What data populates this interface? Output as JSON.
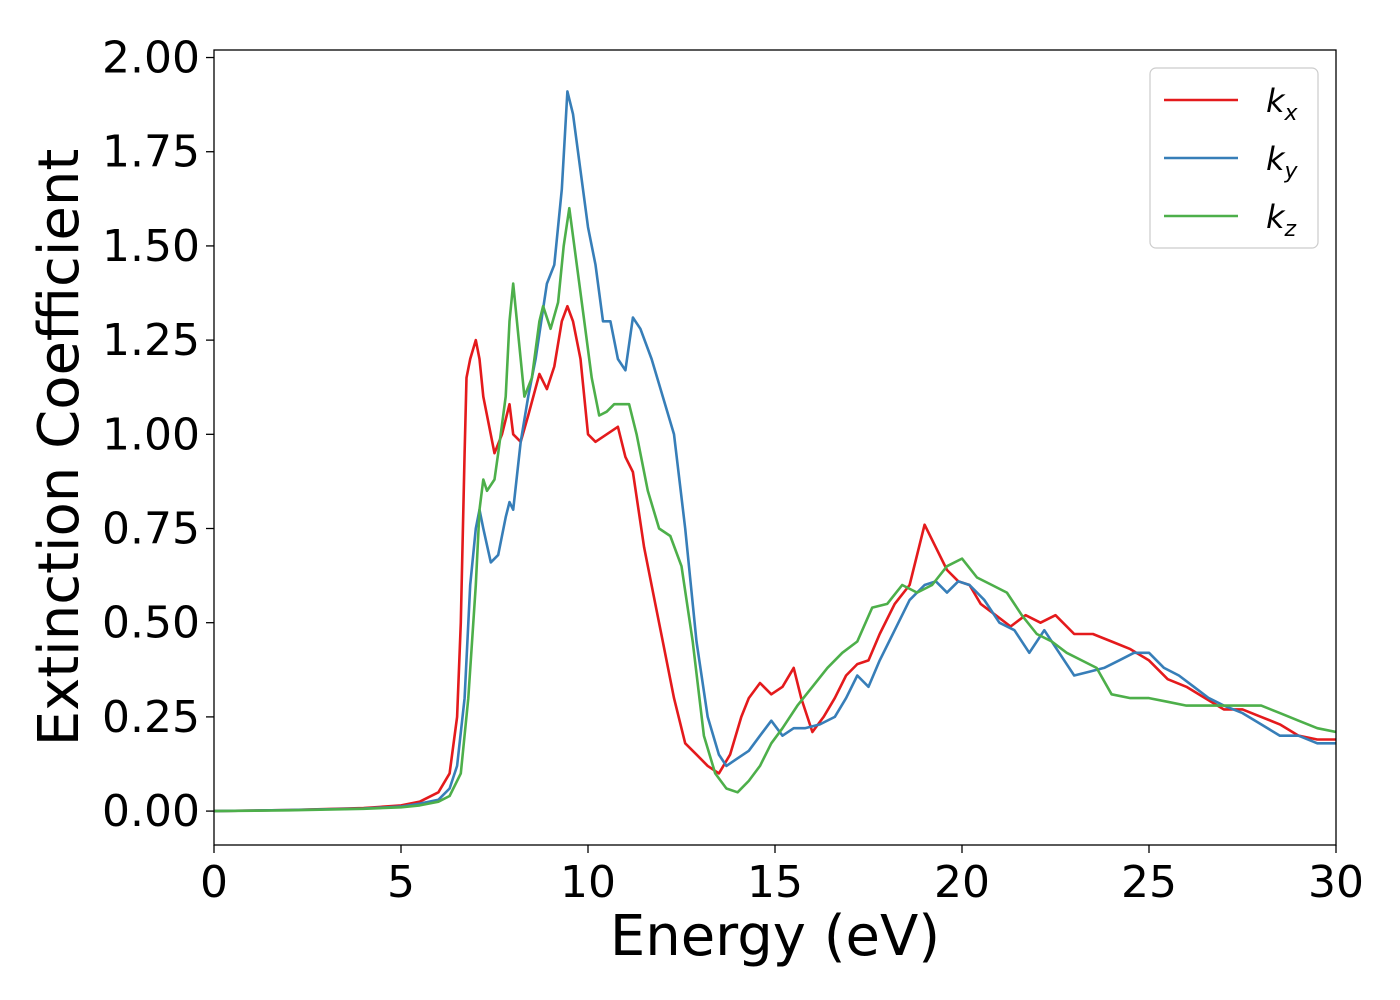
{
  "chart_data": {
    "type": "line",
    "title": "",
    "xlabel": "Energy (eV)",
    "ylabel": "Extinction Coefficient",
    "xlim": [
      0,
      30
    ],
    "ylim": [
      -0.09,
      2.02
    ],
    "x_ticks": [
      0,
      5,
      10,
      15,
      20,
      25,
      30
    ],
    "x_tick_labels": [
      "0",
      "5",
      "10",
      "15",
      "20",
      "25",
      "30"
    ],
    "y_ticks": [
      0,
      0.25,
      0.5,
      0.75,
      1.0,
      1.25,
      1.5,
      1.75,
      2.0
    ],
    "y_tick_labels": [
      "0.00",
      "0.25",
      "0.50",
      "0.75",
      "1.00",
      "1.25",
      "1.50",
      "1.75",
      "2.00"
    ],
    "grid": false,
    "legend": {
      "position": "top-right"
    },
    "series": [
      {
        "name": "k",
        "subscript": "x",
        "color": "#e41a1c",
        "x": [
          0,
          2,
          4,
          5,
          5.5,
          6,
          6.3,
          6.5,
          6.6,
          6.7,
          6.75,
          6.85,
          7.0,
          7.1,
          7.2,
          7.5,
          7.7,
          7.9,
          8.0,
          8.2,
          8.4,
          8.7,
          8.9,
          9.1,
          9.3,
          9.45,
          9.6,
          9.8,
          10.0,
          10.2,
          10.5,
          10.8,
          11.0,
          11.2,
          11.5,
          11.8,
          12.0,
          12.3,
          12.6,
          12.9,
          13.2,
          13.5,
          13.8,
          14.1,
          14.3,
          14.6,
          14.9,
          15.2,
          15.5,
          15.7,
          16.0,
          16.3,
          16.6,
          16.9,
          17.2,
          17.5,
          17.8,
          18.2,
          18.6,
          19.0,
          19.3,
          19.6,
          19.9,
          20.2,
          20.5,
          20.9,
          21.3,
          21.7,
          22.1,
          22.5,
          23.0,
          23.5,
          24.0,
          24.5,
          25.0,
          25.5,
          26.0,
          26.5,
          27.0,
          27.5,
          28.0,
          28.5,
          29.0,
          29.5,
          30.0
        ],
        "y": [
          0,
          0.003,
          0.008,
          0.015,
          0.025,
          0.05,
          0.1,
          0.25,
          0.5,
          0.95,
          1.15,
          1.2,
          1.25,
          1.2,
          1.1,
          0.95,
          1.0,
          1.08,
          1.0,
          0.98,
          1.05,
          1.16,
          1.12,
          1.18,
          1.3,
          1.34,
          1.3,
          1.2,
          1.0,
          0.98,
          1.0,
          1.02,
          0.94,
          0.9,
          0.7,
          0.55,
          0.45,
          0.3,
          0.18,
          0.15,
          0.12,
          0.1,
          0.15,
          0.25,
          0.3,
          0.34,
          0.31,
          0.33,
          0.38,
          0.3,
          0.21,
          0.25,
          0.3,
          0.36,
          0.39,
          0.4,
          0.47,
          0.55,
          0.6,
          0.76,
          0.7,
          0.64,
          0.61,
          0.6,
          0.55,
          0.52,
          0.49,
          0.52,
          0.5,
          0.52,
          0.47,
          0.47,
          0.45,
          0.43,
          0.4,
          0.35,
          0.33,
          0.3,
          0.27,
          0.27,
          0.25,
          0.23,
          0.2,
          0.19,
          0.19
        ]
      },
      {
        "name": "k",
        "subscript": "y",
        "color": "#377eb8",
        "x": [
          0,
          2,
          4,
          5,
          5.5,
          6,
          6.3,
          6.5,
          6.7,
          6.85,
          7.0,
          7.1,
          7.2,
          7.4,
          7.6,
          7.8,
          7.9,
          8.0,
          8.2,
          8.4,
          8.6,
          8.9,
          9.1,
          9.3,
          9.45,
          9.6,
          9.8,
          10.0,
          10.2,
          10.4,
          10.6,
          10.8,
          11.0,
          11.2,
          11.4,
          11.7,
          12.0,
          12.3,
          12.6,
          12.9,
          13.2,
          13.5,
          13.7,
          14.0,
          14.3,
          14.6,
          14.9,
          15.2,
          15.5,
          15.8,
          16.2,
          16.6,
          16.9,
          17.2,
          17.5,
          17.8,
          18.2,
          18.6,
          19.0,
          19.3,
          19.6,
          19.9,
          20.2,
          20.6,
          21.0,
          21.4,
          21.8,
          22.2,
          22.6,
          23.0,
          23.4,
          23.8,
          24.2,
          24.6,
          25.0,
          25.4,
          25.8,
          26.2,
          26.6,
          27.0,
          27.5,
          28.0,
          28.5,
          29.0,
          29.5,
          30.0
        ],
        "y": [
          0,
          0.003,
          0.007,
          0.012,
          0.02,
          0.03,
          0.06,
          0.12,
          0.3,
          0.6,
          0.75,
          0.8,
          0.75,
          0.66,
          0.68,
          0.78,
          0.82,
          0.8,
          0.98,
          1.1,
          1.2,
          1.4,
          1.45,
          1.65,
          1.91,
          1.85,
          1.7,
          1.55,
          1.45,
          1.3,
          1.3,
          1.2,
          1.17,
          1.31,
          1.28,
          1.2,
          1.1,
          1.0,
          0.75,
          0.45,
          0.25,
          0.15,
          0.12,
          0.14,
          0.16,
          0.2,
          0.24,
          0.2,
          0.22,
          0.22,
          0.23,
          0.25,
          0.3,
          0.36,
          0.33,
          0.4,
          0.48,
          0.56,
          0.6,
          0.61,
          0.58,
          0.61,
          0.6,
          0.56,
          0.5,
          0.48,
          0.42,
          0.48,
          0.42,
          0.36,
          0.37,
          0.38,
          0.4,
          0.42,
          0.42,
          0.38,
          0.36,
          0.33,
          0.3,
          0.28,
          0.26,
          0.23,
          0.2,
          0.2,
          0.18,
          0.18
        ]
      },
      {
        "name": "k",
        "subscript": "z",
        "color": "#4daf4a",
        "x": [
          0,
          2,
          4,
          5,
          5.5,
          6,
          6.3,
          6.6,
          6.8,
          7.0,
          7.1,
          7.2,
          7.3,
          7.5,
          7.6,
          7.8,
          7.9,
          8.0,
          8.15,
          8.3,
          8.5,
          8.7,
          8.8,
          9.0,
          9.2,
          9.35,
          9.5,
          9.7,
          9.9,
          10.1,
          10.3,
          10.5,
          10.7,
          10.9,
          11.1,
          11.3,
          11.6,
          11.9,
          12.2,
          12.5,
          12.8,
          13.1,
          13.4,
          13.7,
          14.0,
          14.3,
          14.6,
          14.9,
          15.2,
          15.6,
          16.0,
          16.4,
          16.8,
          17.2,
          17.6,
          18.0,
          18.4,
          18.8,
          19.2,
          19.6,
          20.0,
          20.4,
          20.8,
          21.2,
          21.6,
          22.0,
          22.4,
          22.8,
          23.2,
          23.6,
          24.0,
          24.5,
          25.0,
          25.5,
          26.0,
          26.5,
          27.0,
          27.5,
          28.0,
          28.5,
          29.0,
          29.5,
          30.0
        ],
        "y": [
          0,
          0.002,
          0.006,
          0.01,
          0.015,
          0.025,
          0.04,
          0.1,
          0.3,
          0.6,
          0.8,
          0.88,
          0.85,
          0.88,
          0.95,
          1.1,
          1.3,
          1.4,
          1.25,
          1.1,
          1.15,
          1.3,
          1.34,
          1.28,
          1.35,
          1.5,
          1.6,
          1.45,
          1.3,
          1.15,
          1.05,
          1.06,
          1.08,
          1.08,
          1.08,
          1.0,
          0.85,
          0.75,
          0.73,
          0.65,
          0.45,
          0.2,
          0.1,
          0.06,
          0.05,
          0.08,
          0.12,
          0.18,
          0.22,
          0.28,
          0.33,
          0.38,
          0.42,
          0.45,
          0.54,
          0.55,
          0.6,
          0.58,
          0.6,
          0.65,
          0.67,
          0.62,
          0.6,
          0.58,
          0.52,
          0.47,
          0.45,
          0.42,
          0.4,
          0.38,
          0.31,
          0.3,
          0.3,
          0.29,
          0.28,
          0.28,
          0.28,
          0.28,
          0.28,
          0.26,
          0.24,
          0.22,
          0.21
        ]
      }
    ]
  }
}
